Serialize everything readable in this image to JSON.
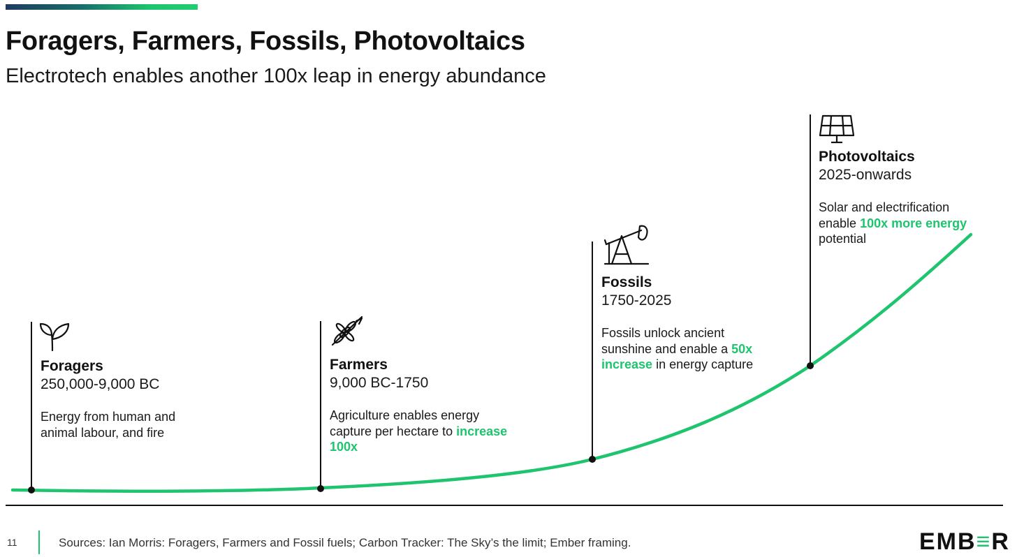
{
  "header": {
    "title": "Foragers, Farmers, Fossils, Photovoltaics",
    "subtitle": "Electrotech enables another 100x leap in energy abundance"
  },
  "eras": [
    {
      "name": "Foragers",
      "period": "250,000-9,000 BC",
      "desc_before": "Energy from human and animal labour, and fire",
      "desc_highlight": "",
      "desc_after": "",
      "icon": "sprout-icon"
    },
    {
      "name": "Farmers",
      "period": "9,000 BC-1750",
      "desc_before": "Agriculture enables energy capture per hectare to ",
      "desc_highlight": "increase 100x",
      "desc_after": "",
      "icon": "wheat-icon"
    },
    {
      "name": "Fossils",
      "period": "1750-2025",
      "desc_before": "Fossils unlock ancient sunshine and enable a ",
      "desc_highlight": "50x increase",
      "desc_after": " in energy capture",
      "icon": "oil-pump-icon"
    },
    {
      "name": "Photovoltaics",
      "period": "2025-onwards",
      "desc_before": "Solar and electrification enable ",
      "desc_highlight": "100x more energy",
      "desc_after": " potential",
      "icon": "solar-panel-icon"
    }
  ],
  "footer": {
    "page_number": "11",
    "sources": "Sources: Ian Morris: Foragers, Farmers and Fossil fuels; Carbon Tracker: The Sky’s the limit; Ember framing.",
    "logo_part1": "EMB",
    "logo_part2": "≡",
    "logo_part3": "R"
  },
  "colors": {
    "accent": "#1ec46e",
    "text": "#111111"
  }
}
